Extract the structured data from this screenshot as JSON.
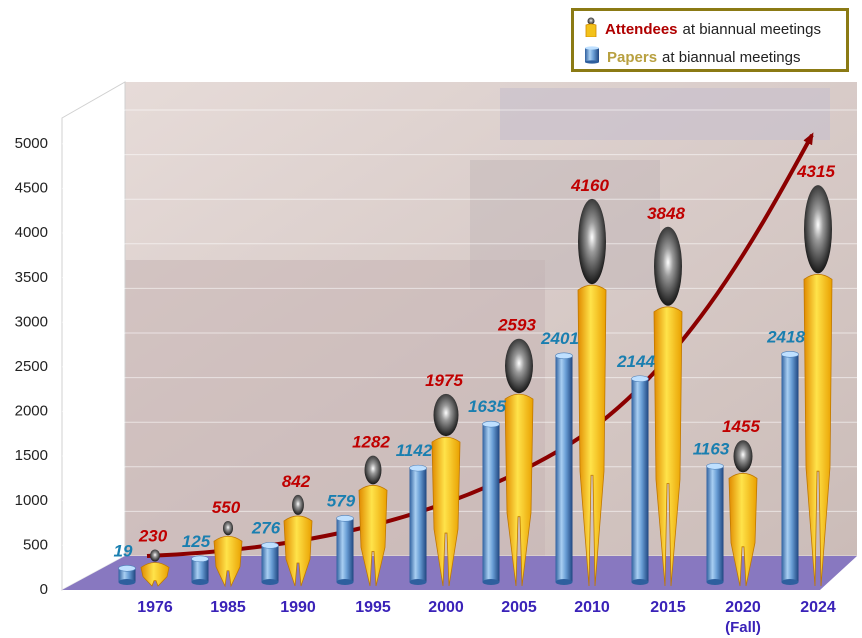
{
  "chart_data": {
    "type": "bar",
    "categories": [
      "1976",
      "1985",
      "1990",
      "1995",
      "2000",
      "2005",
      "2010",
      "2015",
      "2020",
      "2024"
    ],
    "category_sublabels": [
      "",
      "",
      "",
      "",
      "",
      "",
      "",
      "",
      "(Fall)",
      ""
    ],
    "series": [
      {
        "name": "Papers",
        "legend_suffix": "at biannual meetings",
        "marker": "blue-cylinder",
        "values": [
          19,
          125,
          276,
          579,
          1142,
          1635,
          2401,
          2144,
          1163,
          2418
        ]
      },
      {
        "name": "Attendees",
        "legend_suffix": "at biannual meetings",
        "marker": "yellow-person",
        "values": [
          230,
          550,
          842,
          1282,
          1975,
          2593,
          4160,
          3848,
          1455,
          4315
        ]
      }
    ],
    "y_ticks": [
      "0",
      "500",
      "1000",
      "1500",
      "2000",
      "2500",
      "3000",
      "3500",
      "4000",
      "4500",
      "5000"
    ],
    "ylim": [
      0,
      5000
    ],
    "trend_arrow": true,
    "legend_position": "top-right",
    "background": "photo of a conference hall audience with a banner (faded)",
    "colors": {
      "papers_label": "#1a7fb0",
      "attendees_label": "#c00000",
      "category_label": "#3a22b8",
      "trend_arrow": "#8b0000",
      "floor": "#8878c0",
      "legend_border": "#8b7a14"
    }
  }
}
